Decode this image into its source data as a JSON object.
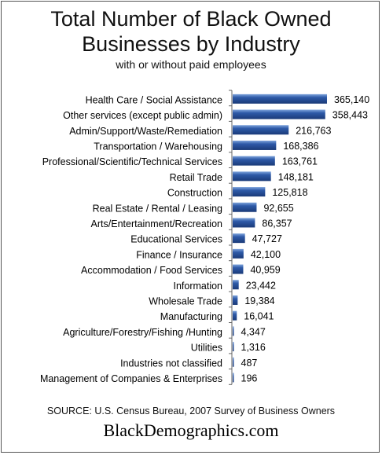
{
  "chart_data": {
    "type": "bar",
    "orientation": "horizontal",
    "title": "Total Number of Black Owned Businesses by Industry",
    "title_lines": [
      "Total Number of Black Owned",
      "Businesses by Industry"
    ],
    "subtitle": "with or without paid employees",
    "categories": [
      "Health Care / Social Assistance",
      "Other services (except public admin)",
      "Admin/Support/Waste/Remediation",
      "Transportation / Warehousing",
      "Professional/Scientific/Technical Services",
      "Retail Trade",
      "Construction",
      "Real Estate / Rental / Leasing",
      "Arts/Entertainment/Recreation",
      "Educational Services",
      "Finance / Insurance",
      "Accommodation / Food Services",
      "Information",
      "Wholesale Trade",
      "Manufacturing",
      "Agriculture/Forestry/Fishing /Hunting",
      "Utilities",
      "Industries not classified",
      "Management of Companies & Enterprises"
    ],
    "values": [
      365140,
      358443,
      216763,
      168386,
      163761,
      148181,
      125818,
      92655,
      86357,
      47727,
      42100,
      40959,
      23442,
      19384,
      16041,
      4347,
      1316,
      487,
      196
    ],
    "value_labels": [
      "365,140",
      "358,443",
      "216,763",
      "168,386",
      "163,761",
      "148,181",
      "125,818",
      "92,655",
      "86,357",
      "47,727",
      "42,100",
      "40,959",
      "23,442",
      "19,384",
      "16,041",
      "4,347",
      "1,316",
      "487",
      "196"
    ],
    "xlim": [
      0,
      365140
    ],
    "grid": false,
    "legend": false,
    "bar_color": "#2e5aa8"
  },
  "footer": {
    "source": "SOURCE: U.S. Census Bureau, 2007 Survey of Business Owners",
    "site": "BlackDemographics.com"
  }
}
